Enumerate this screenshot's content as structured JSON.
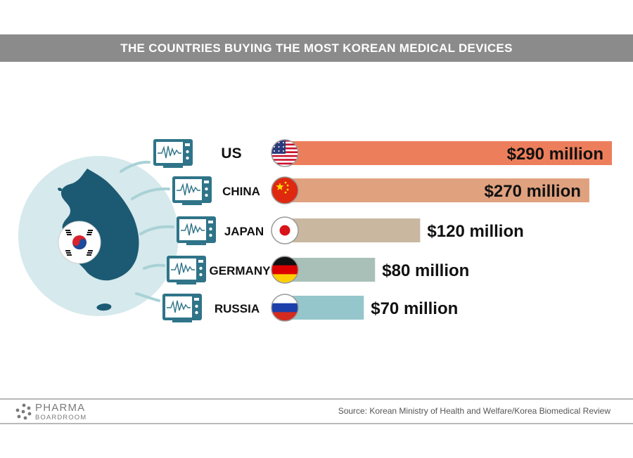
{
  "title": "THE COUNTRIES BUYING THE MOST KOREAN MEDICAL DEVICES",
  "colors": {
    "title_bg": "#8b8b8b",
    "circle": "#d6e9ec",
    "korea_map": "#1c5a73",
    "monitor": "#2f7488",
    "arrow": "#a9d2d6",
    "bar_us": "#ed7e5b",
    "bar_china": "#e0a17f",
    "bar_japan": "#c9b7a0",
    "bar_germany": "#a8c0b8",
    "bar_russia": "#95c6cb"
  },
  "chart_data": {
    "type": "bar",
    "orientation": "horizontal",
    "unit": "million USD",
    "categories": [
      "US",
      "CHINA",
      "JAPAN",
      "GERMANY",
      "RUSSIA"
    ],
    "values": [
      290,
      270,
      120,
      80,
      70
    ],
    "value_labels": [
      "$290 million",
      "$270 million",
      "$120 million",
      "$80 million",
      "$70 million"
    ],
    "flags": [
      "us-flag-icon",
      "china-flag-icon",
      "japan-flag-icon",
      "germany-flag-icon",
      "russia-flag-icon"
    ],
    "xlim": [
      0,
      290
    ]
  },
  "footer": {
    "logo_top": "PHARMA",
    "logo_bottom": "BOARDROOM",
    "source": "Source: Korean Ministry of Health and Welfare/Korea Biomedical Review"
  }
}
